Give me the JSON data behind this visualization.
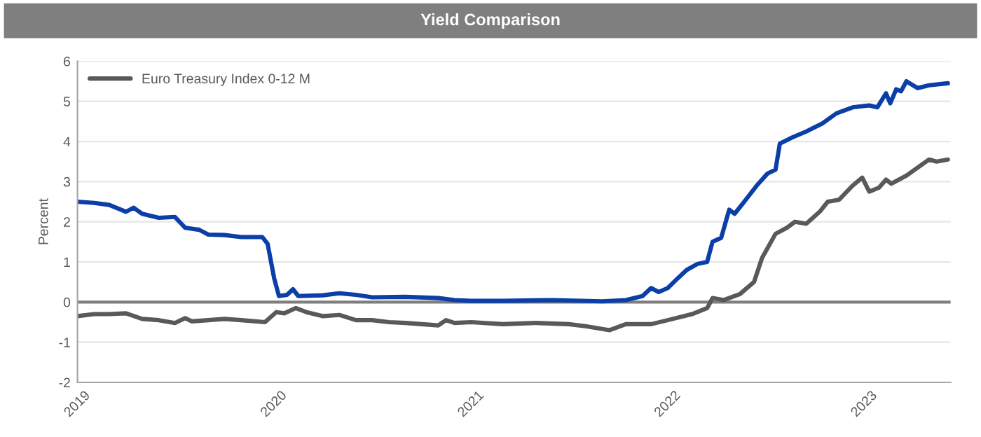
{
  "chart_data": {
    "type": "line",
    "title": "Yield Comparison",
    "ylabel": "Percent",
    "series": [
      {
        "color": "#0b3fa8",
        "x": [
          "2019-01-01",
          "2019-02-01",
          "2019-03-01",
          "2019-04-01",
          "2019-04-15",
          "2019-05-01",
          "2019-06-01",
          "2019-07-01",
          "2019-07-20",
          "2019-08-15",
          "2019-09-01",
          "2019-10-01",
          "2019-11-01",
          "2019-12-10",
          "2019-12-20",
          "2020-01-01",
          "2020-01-10",
          "2020-01-25",
          "2020-02-05",
          "2020-02-15",
          "2020-04-01",
          "2020-05-01",
          "2020-06-01",
          "2020-07-01",
          "2020-09-01",
          "2020-11-01",
          "2020-12-01",
          "2021-01-01",
          "2021-03-01",
          "2021-06-01",
          "2021-09-01",
          "2021-10-15",
          "2021-11-15",
          "2021-12-01",
          "2021-12-15",
          "2022-01-01",
          "2022-01-20",
          "2022-02-05",
          "2022-02-25",
          "2022-03-15",
          "2022-03-25",
          "2022-04-10",
          "2022-04-25",
          "2022-05-05",
          "2022-05-20",
          "2022-06-15",
          "2022-07-05",
          "2022-07-20",
          "2022-07-28",
          "2022-08-20",
          "2022-09-15",
          "2022-10-15",
          "2022-11-10",
          "2022-12-10",
          "2023-01-10",
          "2023-01-25",
          "2023-02-10",
          "2023-02-18",
          "2023-03-01",
          "2023-03-10",
          "2023-03-20",
          "2023-04-10",
          "2023-05-01",
          "2023-06-05"
        ],
        "values": [
          2.5,
          2.47,
          2.42,
          2.25,
          2.35,
          2.2,
          2.1,
          2.12,
          1.85,
          1.8,
          1.68,
          1.67,
          1.62,
          1.62,
          1.45,
          0.6,
          0.15,
          0.18,
          0.32,
          0.15,
          0.17,
          0.22,
          0.18,
          0.12,
          0.13,
          0.1,
          0.05,
          0.03,
          0.03,
          0.05,
          0.02,
          0.05,
          0.15,
          0.35,
          0.25,
          0.35,
          0.6,
          0.8,
          0.95,
          1.0,
          1.5,
          1.6,
          2.3,
          2.2,
          2.45,
          2.9,
          3.2,
          3.3,
          3.95,
          4.1,
          4.25,
          4.45,
          4.7,
          4.85,
          4.9,
          4.85,
          5.2,
          4.95,
          5.3,
          5.25,
          5.5,
          5.33,
          5.4,
          5.45
        ]
      },
      {
        "name": "Euro Treasury Index 0-12 M",
        "color": "#595959",
        "x": [
          "2019-01-01",
          "2019-02-01",
          "2019-03-01",
          "2019-04-01",
          "2019-05-01",
          "2019-06-01",
          "2019-07-01",
          "2019-07-20",
          "2019-08-01",
          "2019-09-01",
          "2019-10-01",
          "2019-11-01",
          "2019-12-15",
          "2020-01-05",
          "2020-01-20",
          "2020-02-10",
          "2020-03-01",
          "2020-04-01",
          "2020-05-01",
          "2020-06-01",
          "2020-07-01",
          "2020-08-01",
          "2020-09-01",
          "2020-10-01",
          "2020-11-01",
          "2020-11-15",
          "2020-12-01",
          "2021-01-01",
          "2021-03-01",
          "2021-05-01",
          "2021-07-01",
          "2021-08-01",
          "2021-09-15",
          "2021-10-15",
          "2021-12-01",
          "2022-01-01",
          "2022-02-15",
          "2022-03-15",
          "2022-03-25",
          "2022-04-15",
          "2022-05-15",
          "2022-06-10",
          "2022-06-25",
          "2022-07-20",
          "2022-08-10",
          "2022-08-25",
          "2022-09-15",
          "2022-10-10",
          "2022-10-25",
          "2022-11-15",
          "2022-12-10",
          "2022-12-28",
          "2023-01-10",
          "2023-01-28",
          "2023-02-10",
          "2023-02-20",
          "2023-03-20",
          "2023-04-10",
          "2023-05-01",
          "2023-05-15",
          "2023-06-05"
        ],
        "values": [
          -0.35,
          -0.3,
          -0.3,
          -0.28,
          -0.42,
          -0.45,
          -0.52,
          -0.4,
          -0.48,
          -0.45,
          -0.42,
          -0.45,
          -0.5,
          -0.25,
          -0.28,
          -0.15,
          -0.25,
          -0.35,
          -0.32,
          -0.45,
          -0.45,
          -0.5,
          -0.52,
          -0.55,
          -0.58,
          -0.45,
          -0.52,
          -0.5,
          -0.55,
          -0.52,
          -0.55,
          -0.6,
          -0.7,
          -0.55,
          -0.55,
          -0.45,
          -0.3,
          -0.15,
          0.1,
          0.05,
          0.2,
          0.5,
          1.1,
          1.7,
          1.85,
          2.0,
          1.95,
          2.25,
          2.5,
          2.55,
          2.9,
          3.1,
          2.75,
          2.85,
          3.05,
          2.95,
          3.15,
          3.35,
          3.55,
          3.5,
          3.55
        ]
      }
    ],
    "xlim": [
      "2019-01-01",
      "2023-06-10"
    ],
    "xticks": [
      {
        "value": "2019-01-01",
        "label": "2019"
      },
      {
        "value": "2020-01-01",
        "label": "2020"
      },
      {
        "value": "2021-01-01",
        "label": "2021"
      },
      {
        "value": "2022-01-01",
        "label": "2022"
      },
      {
        "value": "2023-01-01",
        "label": "2023"
      }
    ],
    "ylim": [
      -2,
      6
    ],
    "yticks": [
      -2,
      -1,
      0,
      1,
      2,
      3,
      4,
      5,
      6
    ],
    "ref_lines": [
      {
        "axis": "y",
        "value": 0,
        "color": "#7f7f7f"
      }
    ],
    "grid": "y",
    "legend": "top left",
    "line_style": "solid",
    "marker": "none"
  }
}
